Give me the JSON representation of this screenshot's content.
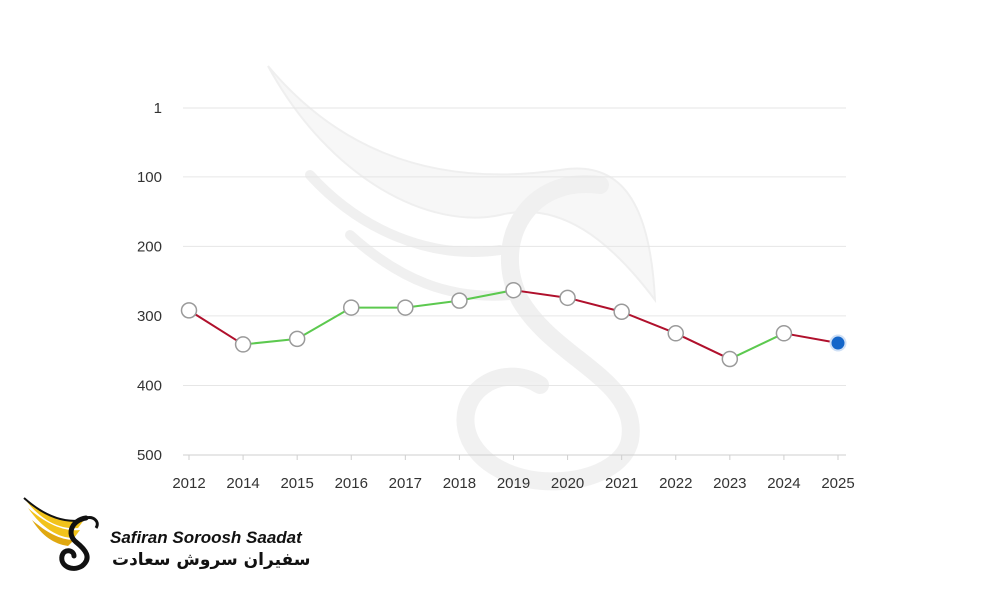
{
  "chart_data": {
    "type": "line",
    "title": "",
    "xlabel": "",
    "ylabel": "",
    "y_axis_inverted": true,
    "ylim": [
      1,
      500
    ],
    "y_ticks": [
      1,
      100,
      200,
      300,
      400,
      500
    ],
    "categories": [
      "2012",
      "2014",
      "2015",
      "2016",
      "2017",
      "2018",
      "2019",
      "2020",
      "2021",
      "2022",
      "2023",
      "2024",
      "2025"
    ],
    "values": [
      292,
      341,
      333,
      288,
      288,
      278,
      263,
      274,
      294,
      325,
      362,
      325,
      339
    ],
    "grid": true,
    "colors": {
      "rise": "#5cc94f",
      "fall": "#b0102c",
      "marker_fill": "#ffffff",
      "marker_stroke": "#9a9a9a",
      "current_marker": "#1466c9",
      "grid": "#e6e6e6"
    }
  },
  "logo": {
    "latin_text": "Safiran Soroosh Saadat",
    "farsi_text": "سفیران سروش سعادت",
    "accent": "#f2c31a"
  }
}
